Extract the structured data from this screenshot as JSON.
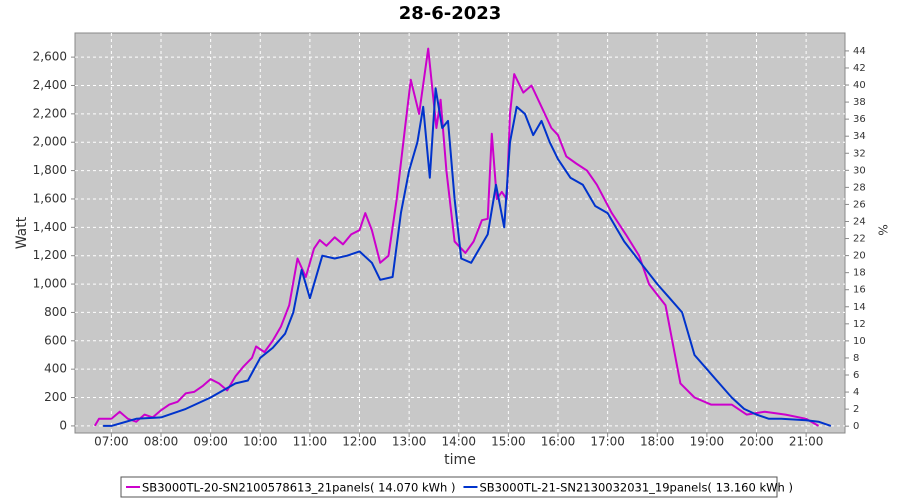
{
  "chart_data": {
    "type": "line",
    "title": "28-6-2023",
    "xlabel": "time",
    "ylabel": "Watt",
    "y2label": "%",
    "xlim": [
      "06:16",
      "21:47"
    ],
    "xticks": [
      "07:00",
      "08:00",
      "09:00",
      "10:00",
      "11:00",
      "12:00",
      "13:00",
      "14:00",
      "15:00",
      "16:00",
      "17:00",
      "18:00",
      "19:00",
      "20:00",
      "21:00"
    ],
    "ylim": [
      -50,
      2770
    ],
    "yticks": [
      0,
      200,
      400,
      600,
      800,
      {
        "value": 1000,
        "label": "1,000"
      },
      {
        "value": 1200,
        "label": "1,200"
      },
      {
        "value": 1400,
        "label": "1,400"
      },
      {
        "value": 1600,
        "label": "1,600"
      },
      {
        "value": 1800,
        "label": "1,800"
      },
      {
        "value": 2000,
        "label": "2,000"
      },
      {
        "value": 2200,
        "label": "2,200"
      },
      {
        "value": 2400,
        "label": "2,400"
      },
      {
        "value": 2600,
        "label": "2,600"
      }
    ],
    "y2lim": [
      -0.8,
      46.1
    ],
    "y2ticks": [
      0,
      2,
      4,
      6,
      8,
      10,
      12,
      14,
      16,
      18,
      20,
      22,
      24,
      26,
      28,
      30,
      32,
      34,
      36,
      38,
      40,
      42,
      44
    ],
    "grid": true,
    "series": [
      {
        "name": "SB3000TL-20-SN2100578613_21panels( 14.070 kWh )",
        "color": "#cc00cc",
        "x": [
          "06:40",
          "06:45",
          "07:00",
          "07:10",
          "07:20",
          "07:30",
          "07:40",
          "07:50",
          "08:00",
          "08:10",
          "08:20",
          "08:30",
          "08:40",
          "08:50",
          "09:00",
          "09:10",
          "09:20",
          "09:30",
          "09:40",
          "09:50",
          "09:55",
          "10:05",
          "10:15",
          "10:25",
          "10:35",
          "10:45",
          "10:55",
          "11:05",
          "11:12",
          "11:20",
          "11:30",
          "11:40",
          "11:50",
          "12:00",
          "12:07",
          "12:15",
          "12:25",
          "12:35",
          "12:45",
          "12:55",
          "13:02",
          "13:12",
          "13:23",
          "13:33",
          "13:38",
          "13:45",
          "13:55",
          "14:08",
          "14:18",
          "14:28",
          "14:35",
          "14:40",
          "14:46",
          "14:52",
          "14:58",
          "15:02",
          "15:07",
          "15:18",
          "15:28",
          "15:40",
          "15:52",
          "16:00",
          "16:10",
          "16:22",
          "16:35",
          "16:47",
          "17:05",
          "17:22",
          "17:38",
          "17:50",
          "18:10",
          "18:28",
          "18:45",
          "19:05",
          "19:30",
          "19:48",
          "20:10",
          "20:35",
          "21:00",
          "21:15"
        ],
        "values": [
          0,
          50,
          50,
          100,
          50,
          30,
          80,
          60,
          110,
          150,
          170,
          230,
          240,
          280,
          330,
          300,
          250,
          350,
          420,
          480,
          560,
          520,
          600,
          700,
          850,
          1180,
          1050,
          1250,
          1310,
          1270,
          1330,
          1280,
          1350,
          1380,
          1500,
          1380,
          1150,
          1200,
          1600,
          2100,
          2440,
          2200,
          2660,
          2100,
          2300,
          1800,
          1300,
          1220,
          1300,
          1450,
          1460,
          2060,
          1600,
          1650,
          1600,
          2200,
          2480,
          2350,
          2400,
          2250,
          2100,
          2050,
          1900,
          1850,
          1800,
          1700,
          1500,
          1350,
          1200,
          1000,
          850,
          300,
          200,
          150,
          150,
          80,
          100,
          80,
          50,
          0
        ]
      },
      {
        "name": "SB3000TL-21-SN2130032031_19panels( 13.160 kWh )",
        "color": "#0033cc",
        "x": [
          "06:50",
          "07:00",
          "07:30",
          "08:00",
          "08:30",
          "09:00",
          "09:30",
          "09:45",
          "10:00",
          "10:15",
          "10:30",
          "10:40",
          "10:50",
          "11:00",
          "11:15",
          "11:30",
          "11:45",
          "12:00",
          "12:15",
          "12:25",
          "12:40",
          "12:50",
          "13:00",
          "13:10",
          "13:17",
          "13:25",
          "13:32",
          "13:40",
          "13:47",
          "13:55",
          "14:03",
          "14:15",
          "14:25",
          "14:35",
          "14:45",
          "14:55",
          "15:02",
          "15:10",
          "15:20",
          "15:30",
          "15:40",
          "15:50",
          "16:00",
          "16:15",
          "16:30",
          "16:45",
          "17:00",
          "17:20",
          "17:40",
          "18:00",
          "18:15",
          "18:30",
          "18:45",
          "19:00",
          "19:15",
          "19:30",
          "19:45",
          "20:00",
          "20:15",
          "20:30",
          "21:00",
          "21:15",
          "21:30"
        ],
        "values": [
          0,
          0,
          50,
          60,
          120,
          200,
          300,
          320,
          480,
          550,
          650,
          800,
          1100,
          900,
          1200,
          1180,
          1200,
          1230,
          1150,
          1030,
          1050,
          1500,
          1800,
          2000,
          2250,
          1750,
          2380,
          2100,
          2150,
          1600,
          1180,
          1150,
          1250,
          1350,
          1700,
          1400,
          2000,
          2250,
          2200,
          2050,
          2150,
          2000,
          1880,
          1750,
          1700,
          1550,
          1500,
          1300,
          1150,
          1000,
          900,
          800,
          500,
          400,
          300,
          200,
          120,
          80,
          50,
          50,
          40,
          30,
          0
        ]
      }
    ]
  }
}
